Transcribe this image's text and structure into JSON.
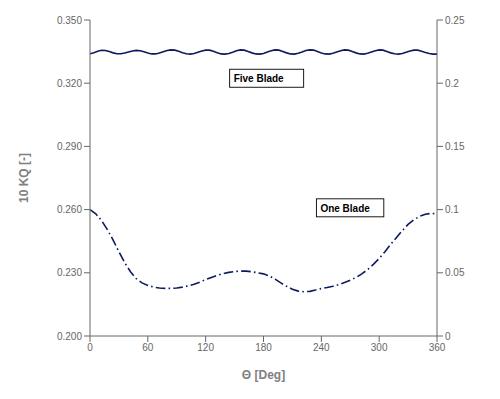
{
  "chart_data": {
    "type": "line",
    "xlabel": "Θ [Deg]",
    "ylabel": "10 KQ [-]",
    "grid": false,
    "xlim": [
      0,
      360
    ],
    "xticks": [
      0,
      60,
      120,
      180,
      240,
      300,
      360
    ],
    "ylim": [
      0.2,
      0.35
    ],
    "yticks": [
      {
        "value": 0.2,
        "label": "0.200"
      },
      {
        "value": 0.23,
        "label": "0.230"
      },
      {
        "value": 0.26,
        "label": "0.260"
      },
      {
        "value": 0.29,
        "label": "0.290"
      },
      {
        "value": 0.32,
        "label": "0.320"
      },
      {
        "value": 0.35,
        "label": "0.350"
      }
    ],
    "y2lim": [
      0,
      0.25
    ],
    "y2ticks": [
      0,
      0.05,
      0.1,
      0.15,
      0.2,
      0.25
    ],
    "series": [
      {
        "color": "#0d1a5e",
        "line_style": "solid",
        "x": [
          0,
          4,
          8,
          12,
          16,
          20,
          24,
          28,
          32,
          36,
          40,
          44,
          48,
          52,
          56,
          60,
          64,
          68,
          72,
          76,
          80,
          84,
          88,
          92,
          96,
          100,
          104,
          108,
          112,
          116,
          120,
          124,
          128,
          132,
          136,
          140,
          144,
          148,
          152,
          156,
          160,
          164,
          168,
          172,
          176,
          180,
          184,
          188,
          192,
          196,
          200,
          204,
          208,
          212,
          216,
          220,
          224,
          228,
          232,
          236,
          240,
          244,
          248,
          252,
          256,
          260,
          264,
          268,
          272,
          276,
          280,
          284,
          288,
          292,
          296,
          300,
          304,
          308,
          312,
          316,
          320,
          324,
          328,
          332,
          336,
          340,
          344,
          348,
          352,
          356,
          360
        ],
        "values": [
          0.334,
          0.3345,
          0.3352,
          0.3356,
          0.3355,
          0.335,
          0.3344,
          0.334,
          0.334,
          0.3343,
          0.3348,
          0.3353,
          0.3356,
          0.3354,
          0.3349,
          0.3343,
          0.3339,
          0.3339,
          0.3343,
          0.3349,
          0.3355,
          0.3358,
          0.3357,
          0.3352,
          0.3345,
          0.334,
          0.3338,
          0.3341,
          0.3347,
          0.3353,
          0.3357,
          0.3357,
          0.3352,
          0.3345,
          0.3339,
          0.3338,
          0.3341,
          0.3347,
          0.3354,
          0.3358,
          0.3357,
          0.3351,
          0.3344,
          0.3339,
          0.3338,
          0.3341,
          0.3348,
          0.3354,
          0.3358,
          0.3357,
          0.3351,
          0.3344,
          0.3339,
          0.3338,
          0.3342,
          0.3348,
          0.3355,
          0.3358,
          0.3357,
          0.335,
          0.3343,
          0.3339,
          0.3338,
          0.3342,
          0.3348,
          0.3354,
          0.3358,
          0.3357,
          0.3351,
          0.3344,
          0.3339,
          0.3338,
          0.3342,
          0.3348,
          0.3354,
          0.3358,
          0.3357,
          0.3351,
          0.3344,
          0.334,
          0.3338,
          0.3341,
          0.3347,
          0.3353,
          0.3357,
          0.3357,
          0.3352,
          0.3346,
          0.3341,
          0.3338,
          0.3338
        ]
      },
      {
        "color": "#0d1a5e",
        "line_style": "dashdot",
        "x": [
          0,
          6,
          12,
          18,
          24,
          30,
          36,
          42,
          48,
          54,
          60,
          66,
          72,
          78,
          84,
          90,
          96,
          102,
          108,
          114,
          120,
          126,
          132,
          138,
          144,
          150,
          156,
          162,
          168,
          174,
          180,
          186,
          192,
          198,
          204,
          210,
          216,
          222,
          228,
          234,
          240,
          246,
          252,
          258,
          264,
          270,
          276,
          282,
          288,
          294,
          300,
          306,
          312,
          318,
          324,
          330,
          336,
          342,
          348,
          354,
          360
        ],
        "values": [
          0.26,
          0.258,
          0.2548,
          0.2505,
          0.2455,
          0.24,
          0.2348,
          0.2305,
          0.2272,
          0.2252,
          0.224,
          0.2232,
          0.2228,
          0.2226,
          0.2226,
          0.2228,
          0.2232,
          0.2238,
          0.2246,
          0.2256,
          0.2268,
          0.2278,
          0.2288,
          0.2296,
          0.2302,
          0.2306,
          0.2308,
          0.2308,
          0.2305,
          0.23,
          0.2295,
          0.2285,
          0.227,
          0.2252,
          0.2236,
          0.2222,
          0.2213,
          0.221,
          0.2212,
          0.2218,
          0.2225,
          0.223,
          0.2236,
          0.2244,
          0.2254,
          0.2265,
          0.2278,
          0.2295,
          0.2315,
          0.234,
          0.2368,
          0.24,
          0.2435,
          0.2468,
          0.25,
          0.253,
          0.2552,
          0.2568,
          0.2578,
          0.2582,
          0.258
        ]
      }
    ],
    "annotations": [
      {
        "text": "Five Blade",
        "x": 148,
        "y": 0.3195
      },
      {
        "text": "One Blade",
        "x": 238,
        "y": 0.258
      }
    ]
  }
}
